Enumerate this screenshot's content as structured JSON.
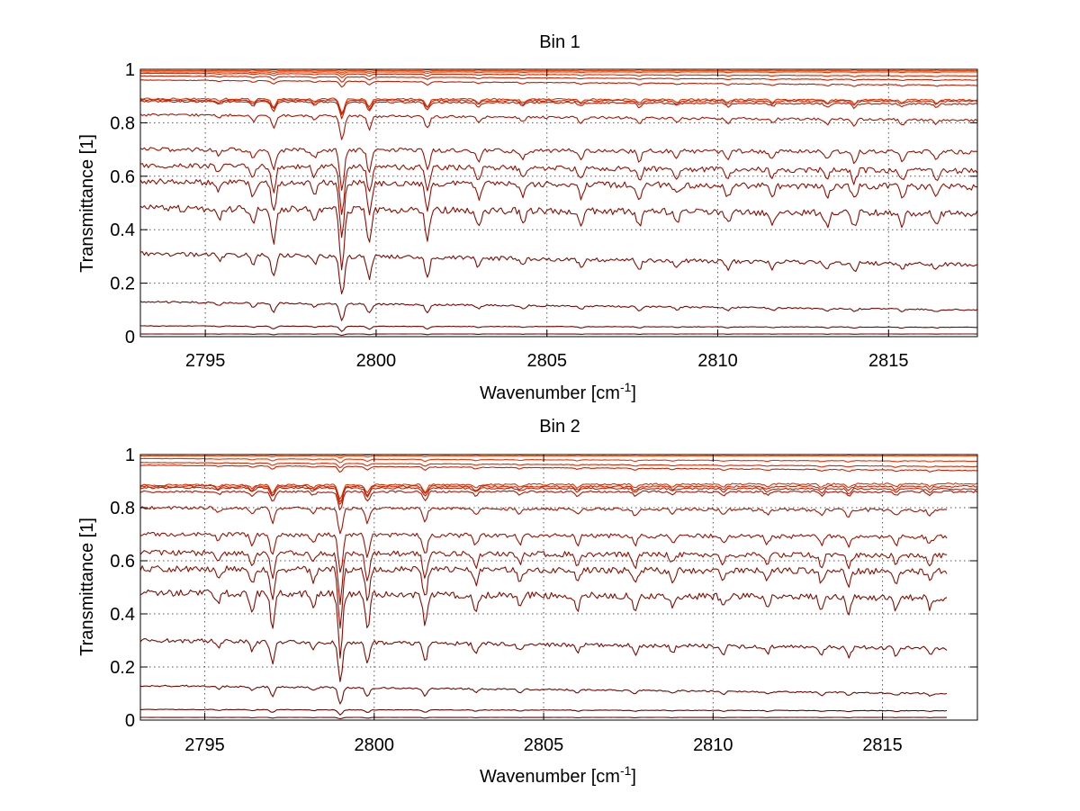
{
  "chart_data": [
    {
      "type": "line",
      "title": "Bin 1",
      "xlabel": "Wavenumber [cm",
      "xlabel_sup": "-1",
      "xlabel_end": "]",
      "ylabel": "Transmittance [1]",
      "xlim": [
        2793.1,
        2817.6
      ],
      "ylim": [
        0,
        1
      ],
      "xticks": [
        2795,
        2800,
        2805,
        2810,
        2815
      ],
      "xtick_labels": [
        "2795",
        "2800",
        "2805",
        "2810",
        "2815"
      ],
      "yticks": [
        0,
        0.2,
        0.4,
        0.6,
        0.8,
        1
      ],
      "ytick_labels": [
        "0",
        "0.2",
        "0.4",
        "0.6",
        "0.8",
        "1"
      ],
      "grid": true,
      "x_end": 2817.6,
      "series": [
        {
          "color": "#ff5000",
          "y": [
            1.0,
            1.0
          ],
          "x": [
            2793.1,
            2817.6
          ]
        },
        {
          "color": "#ff4000",
          "y": [
            0.995,
            0.995
          ],
          "x": [
            2793.1,
            2817.6
          ]
        },
        {
          "color": "#f23000",
          "y": [
            0.99,
            0.99
          ],
          "x": [
            2793.1,
            2817.6
          ]
        },
        {
          "color": "#e02800",
          "y": [
            0.985,
            0.975
          ],
          "x": [
            2793.1,
            2817.6
          ]
        },
        {
          "color": "#d02000",
          "y": [
            0.975,
            0.96
          ],
          "x": [
            2793.1,
            2817.6
          ]
        },
        {
          "color": "#c41a00",
          "y": [
            0.96,
            0.94
          ],
          "x": [
            2793.1,
            2817.6
          ]
        },
        {
          "color": "#e03000",
          "y": [
            0.89,
            0.885
          ],
          "x": [
            2793.1,
            2817.6
          ]
        },
        {
          "color": "#d02400",
          "y": [
            0.885,
            0.88
          ],
          "x": [
            2793.1,
            2817.6
          ]
        },
        {
          "color": "#c01a00",
          "y": [
            0.88,
            0.87
          ],
          "x": [
            2793.1,
            2817.6
          ]
        },
        {
          "color": "#b01400",
          "y": [
            0.83,
            0.81
          ],
          "x": [
            2793.1,
            2817.6
          ]
        },
        {
          "color": "#a01000",
          "y": [
            0.7,
            0.69
          ],
          "x": [
            2793.1,
            2817.6
          ]
        },
        {
          "color": "#a00e00",
          "y": [
            0.64,
            0.62
          ],
          "x": [
            2793.1,
            2817.6
          ]
        },
        {
          "color": "#980c00",
          "y": [
            0.58,
            0.56
          ],
          "x": [
            2793.1,
            2817.6
          ]
        },
        {
          "color": "#900a00",
          "y": [
            0.48,
            0.46
          ],
          "x": [
            2793.1,
            2817.6
          ]
        },
        {
          "color": "#880800",
          "y": [
            0.31,
            0.27
          ],
          "x": [
            2793.1,
            2817.6
          ]
        },
        {
          "color": "#800600",
          "y": [
            0.13,
            0.1
          ],
          "x": [
            2793.1,
            2817.6
          ]
        },
        {
          "color": "#780400",
          "y": [
            0.04,
            0.035
          ],
          "x": [
            2793.1,
            2817.6
          ]
        },
        {
          "color": "#700000",
          "y": [
            0.01,
            0.01
          ],
          "x": [
            2793.1,
            2817.6
          ]
        }
      ]
    },
    {
      "type": "line",
      "title": "Bin 2",
      "xlabel": "Wavenumber [cm",
      "xlabel_sup": "-1",
      "xlabel_end": "]",
      "ylabel": "Transmittance [1]",
      "xlim": [
        2793.1,
        2817.8
      ],
      "ylim": [
        0,
        1
      ],
      "xticks": [
        2795,
        2800,
        2805,
        2810,
        2815
      ],
      "xtick_labels": [
        "2795",
        "2800",
        "2805",
        "2810",
        "2815"
      ],
      "yticks": [
        0,
        0.2,
        0.4,
        0.6,
        0.8,
        1
      ],
      "ytick_labels": [
        "0",
        "0.2",
        "0.4",
        "0.6",
        "0.8",
        "1"
      ],
      "grid": true,
      "x_end": 2817.8,
      "series": [
        {
          "color": "#ff5000",
          "y": [
            1.0,
            1.0
          ],
          "x": [
            2793.1,
            2817.8
          ]
        },
        {
          "color": "#ff4000",
          "y": [
            0.995,
            0.995
          ],
          "x": [
            2793.1,
            2817.8
          ]
        },
        {
          "color": "#f23000",
          "y": [
            0.985,
            0.975
          ],
          "x": [
            2793.1,
            2817.8
          ]
        },
        {
          "color": "#e02800",
          "y": [
            0.97,
            0.955
          ],
          "x": [
            2793.1,
            2817.8
          ]
        },
        {
          "color": "#d02000",
          "y": [
            0.96,
            0.94
          ],
          "x": [
            2793.1,
            2817.8
          ]
        },
        {
          "color": "#e03000",
          "y": [
            0.885,
            0.89
          ],
          "x": [
            2793.1,
            2817.8
          ]
        },
        {
          "color": "#d02400",
          "y": [
            0.88,
            0.88
          ],
          "x": [
            2793.1,
            2817.8
          ]
        },
        {
          "color": "#c41c00",
          "y": [
            0.875,
            0.87
          ],
          "x": [
            2793.1,
            2817.8
          ]
        },
        {
          "color": "#b01400",
          "y": [
            0.86,
            0.86
          ],
          "x": [
            2793.1,
            2817.8
          ]
        },
        {
          "color": "#a81200",
          "y": [
            0.8,
            0.79
          ],
          "x": [
            2793.1,
            2816.9
          ]
        },
        {
          "color": "#a01000",
          "y": [
            0.7,
            0.69
          ],
          "x": [
            2793.1,
            2816.9
          ]
        },
        {
          "color": "#980e00",
          "y": [
            0.63,
            0.62
          ],
          "x": [
            2793.1,
            2816.9
          ]
        },
        {
          "color": "#900c00",
          "y": [
            0.57,
            0.56
          ],
          "x": [
            2793.1,
            2816.9
          ]
        },
        {
          "color": "#880a00",
          "y": [
            0.48,
            0.46
          ],
          "x": [
            2793.1,
            2816.9
          ]
        },
        {
          "color": "#800800",
          "y": [
            0.3,
            0.27
          ],
          "x": [
            2793.1,
            2816.9
          ]
        },
        {
          "color": "#780600",
          "y": [
            0.13,
            0.1
          ],
          "x": [
            2793.1,
            2816.9
          ]
        },
        {
          "color": "#700400",
          "y": [
            0.04,
            0.035
          ],
          "x": [
            2793.1,
            2816.9
          ]
        },
        {
          "color": "#680000",
          "y": [
            0.01,
            0.01
          ],
          "x": [
            2793.1,
            2816.9
          ]
        }
      ]
    }
  ]
}
